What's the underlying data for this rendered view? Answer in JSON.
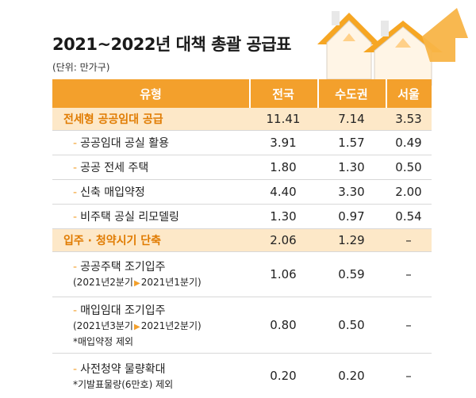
{
  "title": "2021~2022년 대책 총괄 공급표",
  "unit": "(단위: 만가구)",
  "headers": [
    "유형",
    "전국",
    "수도권",
    "서울"
  ],
  "rows": [
    {
      "label": "전세형 공공임대 공급",
      "main": true,
      "nation": "11.41",
      "capital": "7.14",
      "seoul": "3.53"
    },
    {
      "label": "공공임대 공실 활용",
      "nation": "3.91",
      "capital": "1.57",
      "seoul": "0.49"
    },
    {
      "label": "공공 전세 주택",
      "nation": "1.80",
      "capital": "1.30",
      "seoul": "0.50"
    },
    {
      "label": "신축 매입약정",
      "nation": "4.40",
      "capital": "3.30",
      "seoul": "2.00"
    },
    {
      "label": "비주택 공실 리모델링",
      "nation": "1.30",
      "capital": "0.97",
      "seoul": "0.54"
    },
    {
      "label": "입주 · 청약시기 단축",
      "main": true,
      "nation": "2.06",
      "capital": "1.29",
      "seoul": "–"
    },
    {
      "label": "공공주택 조기입주",
      "period_a": "(2021년2분기",
      "period_b": "2021년1분기)",
      "nation": "1.06",
      "capital": "0.59",
      "seoul": "–"
    },
    {
      "label": "매입임대 조기입주",
      "period_a": "(2021년3분기",
      "period_b": "2021년2분기)",
      "note": "*매입약정 제외",
      "nation": "0.80",
      "capital": "0.50",
      "seoul": "–"
    },
    {
      "label": "사전청약 물량확대",
      "note": "*기발표물량(6만호) 제외",
      "nation": "0.20",
      "capital": "0.20",
      "seoul": "–"
    }
  ],
  "colors": {
    "header": "#f3a02c",
    "highlight_row": "#fde8c8",
    "highlight_text": "#e07b00"
  },
  "icons": [
    "house-icon",
    "house-icon"
  ]
}
